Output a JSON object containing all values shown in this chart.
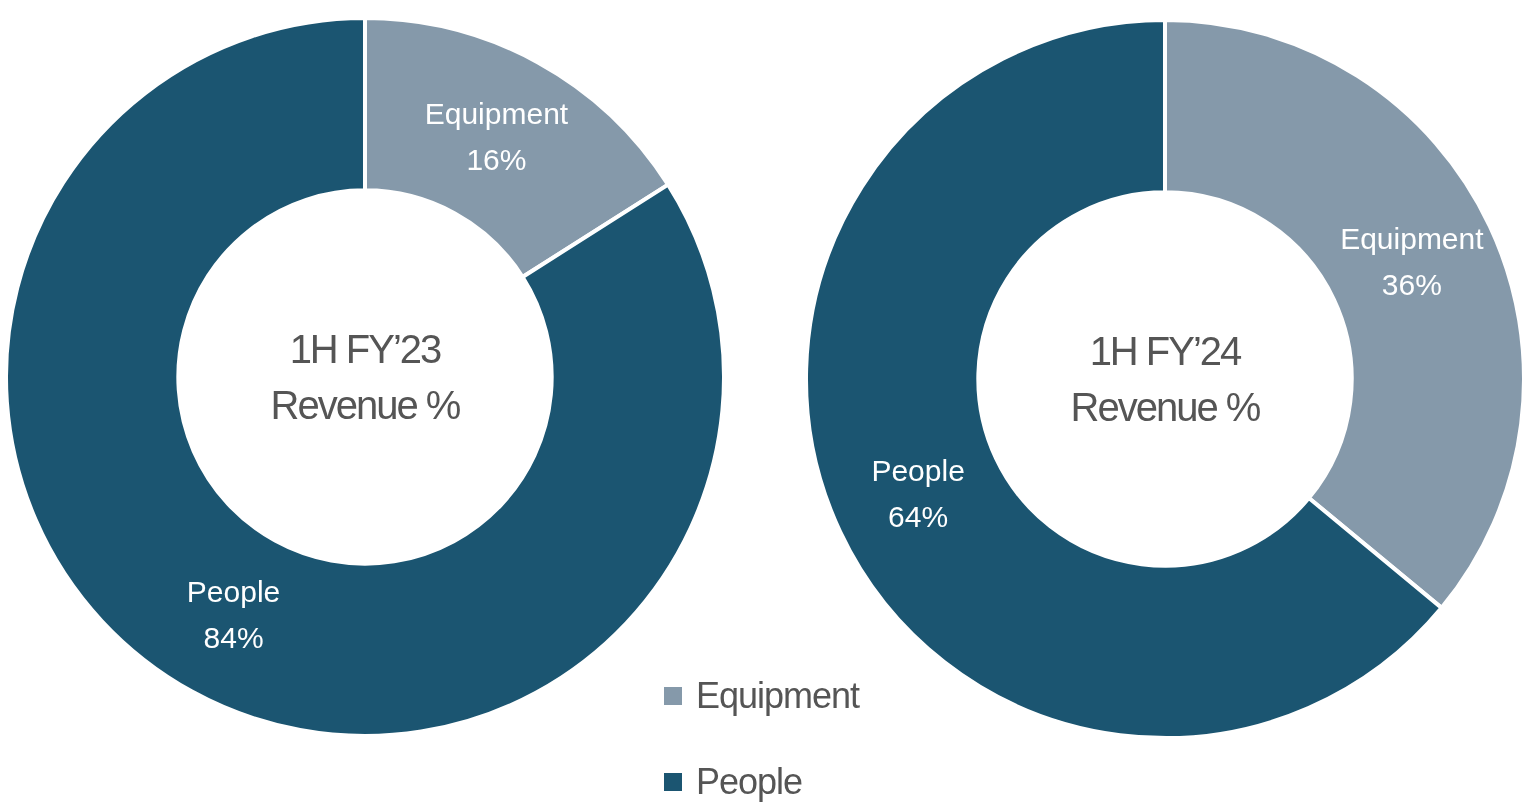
{
  "chart_data": [
    {
      "type": "donut",
      "title": "1H FY’23 Revenue %",
      "categories": [
        "Equipment",
        "People"
      ],
      "values": [
        16,
        84
      ],
      "colors": [
        "#8599aa",
        "#1b5571"
      ],
      "value_labels": [
        "16%",
        "84%"
      ],
      "legend": "bottom right"
    },
    {
      "type": "donut",
      "title": "1H FY’24 Revenue %",
      "categories": [
        "Equipment",
        "People"
      ],
      "values": [
        36,
        64
      ],
      "colors": [
        "#8599aa",
        "#1b5571"
      ],
      "value_labels": [
        "36%",
        "64%"
      ]
    }
  ]
}
